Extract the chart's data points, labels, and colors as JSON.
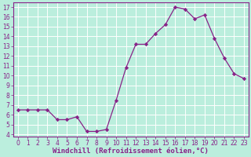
{
  "x": [
    0,
    1,
    2,
    3,
    4,
    5,
    6,
    7,
    8,
    9,
    10,
    11,
    12,
    13,
    14,
    15,
    16,
    17,
    18,
    19,
    20,
    21,
    22,
    23
  ],
  "y": [
    6.5,
    6.5,
    6.5,
    6.5,
    5.5,
    5.5,
    5.8,
    4.3,
    4.3,
    4.5,
    7.5,
    10.8,
    13.2,
    13.2,
    14.3,
    15.2,
    17.0,
    16.8,
    15.8,
    16.2,
    13.8,
    11.8,
    10.2,
    9.7
  ],
  "line_color": "#882288",
  "marker": "D",
  "marker_size": 2.2,
  "bg_color": "#bbeedd",
  "grid_color": "#ffffff",
  "xlabel": "Windchill (Refroidissement éolien,°C)",
  "xlim": [
    -0.5,
    23.5
  ],
  "ylim": [
    3.8,
    17.5
  ],
  "yticks": [
    4,
    5,
    6,
    7,
    8,
    9,
    10,
    11,
    12,
    13,
    14,
    15,
    16,
    17
  ],
  "xticks": [
    0,
    1,
    2,
    3,
    4,
    5,
    6,
    7,
    8,
    9,
    10,
    11,
    12,
    13,
    14,
    15,
    16,
    17,
    18,
    19,
    20,
    21,
    22,
    23
  ],
  "tick_label_size": 5.5,
  "xlabel_size": 6.5,
  "axis_color": "#882288",
  "spine_color": "#882288"
}
